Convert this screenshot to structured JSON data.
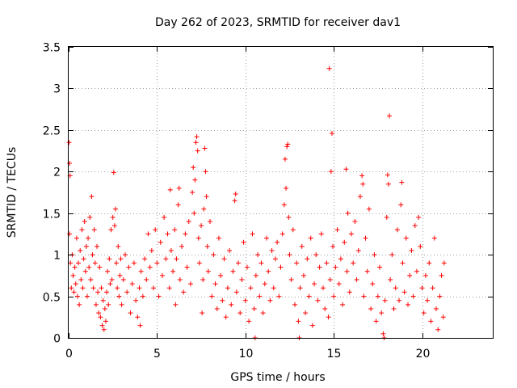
{
  "chart_data": {
    "type": "scatter",
    "title": "Day 262 of 2023, SRMTID for receiver dav1",
    "xlabel": "GPS time / hours",
    "ylabel": "SRMTID / TECUs",
    "xlim": [
      0,
      24
    ],
    "ylim": [
      0,
      3.5
    ],
    "xticks": [
      0,
      5,
      10,
      15,
      20
    ],
    "yticks": [
      0,
      0.5,
      1,
      1.5,
      2,
      2.5,
      3,
      3.5
    ],
    "xtick_labels": [
      "0",
      "5",
      "10",
      "15",
      "20"
    ],
    "ytick_labels": [
      "0",
      "0.5",
      "1",
      "1.5",
      "2",
      "2.5",
      "3",
      "3.5"
    ],
    "grid": true,
    "marker": "+",
    "color": "#ff0000",
    "series": [
      {
        "name": "SRMTID",
        "points": [
          [
            0.02,
            2.35
          ],
          [
            0.05,
            2.1
          ],
          [
            0.08,
            1.95
          ],
          [
            0.05,
            1.25
          ],
          [
            0.1,
            0.9
          ],
          [
            0.15,
            0.6
          ],
          [
            0.2,
            1.0
          ],
          [
            0.25,
            0.75
          ],
          [
            0.3,
            0.55
          ],
          [
            0.35,
            0.85
          ],
          [
            0.4,
            0.65
          ],
          [
            0.45,
            1.2
          ],
          [
            0.5,
            0.5
          ],
          [
            0.55,
            0.9
          ],
          [
            0.6,
            0.4
          ],
          [
            0.65,
            1.05
          ],
          [
            0.7,
            0.7
          ],
          [
            0.75,
            1.3
          ],
          [
            0.8,
            0.6
          ],
          [
            0.85,
            0.95
          ],
          [
            0.9,
            1.4
          ],
          [
            0.95,
            0.8
          ],
          [
            1.0,
            1.1
          ],
          [
            1.05,
            0.5
          ],
          [
            1.1,
            1.2
          ],
          [
            1.15,
            0.85
          ],
          [
            1.2,
            1.45
          ],
          [
            1.25,
            0.7
          ],
          [
            1.3,
            1.7
          ],
          [
            1.35,
            1.0
          ],
          [
            1.4,
            0.6
          ],
          [
            1.45,
            1.3
          ],
          [
            1.5,
            0.9
          ],
          [
            1.55,
            0.4
          ],
          [
            1.6,
            1.1
          ],
          [
            1.65,
            0.55
          ],
          [
            1.7,
            0.3
          ],
          [
            1.75,
            0.85
          ],
          [
            1.8,
            0.25
          ],
          [
            1.85,
            0.6
          ],
          [
            1.9,
            0.15
          ],
          [
            1.95,
            0.45
          ],
          [
            2.0,
            0.1
          ],
          [
            2.05,
            0.35
          ],
          [
            2.1,
            0.2
          ],
          [
            2.15,
            0.55
          ],
          [
            2.2,
            0.8
          ],
          [
            2.25,
            0.4
          ],
          [
            2.3,
            0.95
          ],
          [
            2.35,
            0.65
          ],
          [
            2.4,
            1.3
          ],
          [
            2.45,
            0.7
          ],
          [
            2.5,
            1.45
          ],
          [
            2.55,
            1.99
          ],
          [
            2.6,
            1.35
          ],
          [
            2.65,
            1.55
          ],
          [
            2.7,
            0.9
          ],
          [
            2.75,
            0.6
          ],
          [
            2.8,
            1.1
          ],
          [
            2.85,
            0.5
          ],
          [
            2.9,
            0.75
          ],
          [
            2.95,
            0.95
          ],
          [
            3.0,
            0.4
          ],
          [
            3.1,
            0.7
          ],
          [
            3.2,
            1.0
          ],
          [
            3.3,
            0.55
          ],
          [
            3.4,
            0.85
          ],
          [
            3.5,
            0.3
          ],
          [
            3.6,
            0.65
          ],
          [
            3.7,
            0.9
          ],
          [
            3.8,
            0.45
          ],
          [
            3.9,
            0.25
          ],
          [
            4.0,
            0.6
          ],
          [
            4.05,
            0.15
          ],
          [
            4.1,
            0.8
          ],
          [
            4.2,
            0.5
          ],
          [
            4.3,
            0.95
          ],
          [
            4.4,
            0.7
          ],
          [
            4.5,
            1.25
          ],
          [
            4.6,
            0.85
          ],
          [
            4.7,
            1.05
          ],
          [
            4.8,
            0.6
          ],
          [
            4.9,
            1.3
          ],
          [
            5.0,
            0.9
          ],
          [
            5.1,
            0.5
          ],
          [
            5.2,
            1.15
          ],
          [
            5.3,
            0.75
          ],
          [
            5.4,
            1.45
          ],
          [
            5.5,
            0.95
          ],
          [
            5.6,
            1.25
          ],
          [
            5.7,
            0.6
          ],
          [
            5.75,
            1.78
          ],
          [
            5.8,
            1.05
          ],
          [
            5.9,
            0.8
          ],
          [
            6.0,
            1.3
          ],
          [
            6.05,
            0.4
          ],
          [
            6.1,
            0.95
          ],
          [
            6.2,
            1.6
          ],
          [
            6.25,
            1.8
          ],
          [
            6.3,
            0.7
          ],
          [
            6.4,
            1.1
          ],
          [
            6.5,
            0.55
          ],
          [
            6.6,
            1.25
          ],
          [
            6.7,
            0.85
          ],
          [
            6.8,
            1.4
          ],
          [
            6.9,
            0.65
          ],
          [
            7.0,
            1.75
          ],
          [
            7.05,
            2.05
          ],
          [
            7.1,
            1.5
          ],
          [
            7.15,
            1.9
          ],
          [
            7.2,
            2.35
          ],
          [
            7.25,
            2.42
          ],
          [
            7.3,
            2.25
          ],
          [
            7.35,
            1.2
          ],
          [
            7.4,
            0.9
          ],
          [
            7.5,
            1.35
          ],
          [
            7.55,
            0.3
          ],
          [
            7.6,
            0.7
          ],
          [
            7.65,
            1.55
          ],
          [
            7.7,
            2.28
          ],
          [
            7.75,
            2.0
          ],
          [
            7.8,
            1.7
          ],
          [
            7.85,
            1.1
          ],
          [
            7.9,
            0.8
          ],
          [
            8.0,
            1.4
          ],
          [
            8.1,
            0.5
          ],
          [
            8.2,
            1.0
          ],
          [
            8.3,
            0.65
          ],
          [
            8.4,
            0.35
          ],
          [
            8.5,
            1.2
          ],
          [
            8.6,
            0.75
          ],
          [
            8.7,
            0.45
          ],
          [
            8.8,
            0.95
          ],
          [
            8.9,
            0.25
          ],
          [
            9.0,
            0.6
          ],
          [
            9.1,
            1.05
          ],
          [
            9.2,
            0.4
          ],
          [
            9.3,
            0.8
          ],
          [
            9.4,
            1.65
          ],
          [
            9.45,
            1.73
          ],
          [
            9.5,
            0.55
          ],
          [
            9.6,
            0.9
          ],
          [
            9.7,
            0.3
          ],
          [
            9.8,
            0.7
          ],
          [
            9.9,
            1.15
          ],
          [
            10.0,
            0.45
          ],
          [
            10.1,
            0.85
          ],
          [
            10.2,
            0.2
          ],
          [
            10.3,
            0.6
          ],
          [
            10.4,
            1.25
          ],
          [
            10.5,
            0.35
          ],
          [
            10.55,
            0.0
          ],
          [
            10.6,
            0.75
          ],
          [
            10.7,
            1.0
          ],
          [
            10.8,
            0.5
          ],
          [
            10.9,
            0.9
          ],
          [
            11.0,
            0.3
          ],
          [
            11.1,
            0.65
          ],
          [
            11.2,
            1.2
          ],
          [
            11.3,
            0.8
          ],
          [
            11.4,
            0.45
          ],
          [
            11.5,
            1.05
          ],
          [
            11.6,
            0.6
          ],
          [
            11.7,
            0.95
          ],
          [
            11.8,
            1.15
          ],
          [
            11.9,
            0.5
          ],
          [
            12.0,
            0.85
          ],
          [
            12.1,
            1.25
          ],
          [
            12.2,
            1.6
          ],
          [
            12.25,
            2.15
          ],
          [
            12.3,
            1.8
          ],
          [
            12.35,
            2.3
          ],
          [
            12.4,
            2.33
          ],
          [
            12.45,
            1.45
          ],
          [
            12.5,
            1.0
          ],
          [
            12.6,
            0.7
          ],
          [
            12.7,
            1.3
          ],
          [
            12.8,
            0.4
          ],
          [
            12.9,
            0.9
          ],
          [
            13.0,
            0.2
          ],
          [
            13.05,
            0.0
          ],
          [
            13.1,
            0.6
          ],
          [
            13.2,
            1.1
          ],
          [
            13.3,
            0.75
          ],
          [
            13.4,
            0.3
          ],
          [
            13.5,
            0.95
          ],
          [
            13.6,
            0.5
          ],
          [
            13.7,
            1.2
          ],
          [
            13.8,
            0.15
          ],
          [
            13.9,
            0.65
          ],
          [
            14.0,
            1.0
          ],
          [
            14.1,
            0.45
          ],
          [
            14.2,
            0.85
          ],
          [
            14.3,
            1.25
          ],
          [
            14.4,
            0.6
          ],
          [
            14.5,
            0.35
          ],
          [
            14.6,
            0.9
          ],
          [
            14.7,
            0.25
          ],
          [
            14.75,
            3.24
          ],
          [
            14.8,
            0.7
          ],
          [
            14.85,
            2.0
          ],
          [
            14.9,
            2.46
          ],
          [
            14.95,
            1.1
          ],
          [
            15.0,
            0.5
          ],
          [
            15.1,
            0.85
          ],
          [
            15.2,
            1.3
          ],
          [
            15.3,
            0.65
          ],
          [
            15.4,
            0.95
          ],
          [
            15.5,
            0.4
          ],
          [
            15.6,
            1.15
          ],
          [
            15.7,
            2.03
          ],
          [
            15.75,
            0.8
          ],
          [
            15.8,
            1.5
          ],
          [
            15.9,
            0.55
          ],
          [
            16.0,
            1.25
          ],
          [
            16.1,
            0.9
          ],
          [
            16.2,
            1.4
          ],
          [
            16.3,
            0.7
          ],
          [
            16.4,
            1.05
          ],
          [
            16.5,
            1.7
          ],
          [
            16.6,
            1.95
          ],
          [
            16.65,
            1.85
          ],
          [
            16.7,
            0.5
          ],
          [
            16.8,
            1.2
          ],
          [
            16.9,
            0.8
          ],
          [
            17.0,
            1.55
          ],
          [
            17.1,
            0.35
          ],
          [
            17.2,
            0.65
          ],
          [
            17.3,
            1.0
          ],
          [
            17.4,
            0.2
          ],
          [
            17.5,
            0.5
          ],
          [
            17.6,
            0.85
          ],
          [
            17.7,
            0.3
          ],
          [
            17.8,
            0.05
          ],
          [
            17.85,
            0.0
          ],
          [
            17.9,
            0.45
          ],
          [
            18.0,
            1.45
          ],
          [
            18.05,
            1.96
          ],
          [
            18.1,
            1.85
          ],
          [
            18.15,
            2.67
          ],
          [
            18.2,
            0.7
          ],
          [
            18.3,
            1.0
          ],
          [
            18.4,
            0.35
          ],
          [
            18.5,
            0.6
          ],
          [
            18.6,
            1.3
          ],
          [
            18.7,
            0.45
          ],
          [
            18.8,
            1.6
          ],
          [
            18.85,
            1.87
          ],
          [
            18.9,
            0.9
          ],
          [
            19.0,
            0.55
          ],
          [
            19.1,
            1.2
          ],
          [
            19.2,
            0.4
          ],
          [
            19.3,
            0.75
          ],
          [
            19.4,
            1.05
          ],
          [
            19.5,
            0.5
          ],
          [
            19.6,
            1.35
          ],
          [
            19.7,
            0.8
          ],
          [
            19.8,
            1.45
          ],
          [
            19.9,
            1.1
          ],
          [
            20.0,
            0.6
          ],
          [
            20.1,
            0.3
          ],
          [
            20.2,
            0.75
          ],
          [
            20.3,
            0.45
          ],
          [
            20.4,
            0.9
          ],
          [
            20.5,
            0.2
          ],
          [
            20.6,
            0.6
          ],
          [
            20.7,
            1.2
          ],
          [
            20.8,
            0.35
          ],
          [
            20.9,
            0.1
          ],
          [
            21.0,
            0.5
          ],
          [
            21.1,
            0.75
          ],
          [
            21.2,
            0.25
          ],
          [
            21.25,
            0.9
          ]
        ]
      }
    ]
  }
}
